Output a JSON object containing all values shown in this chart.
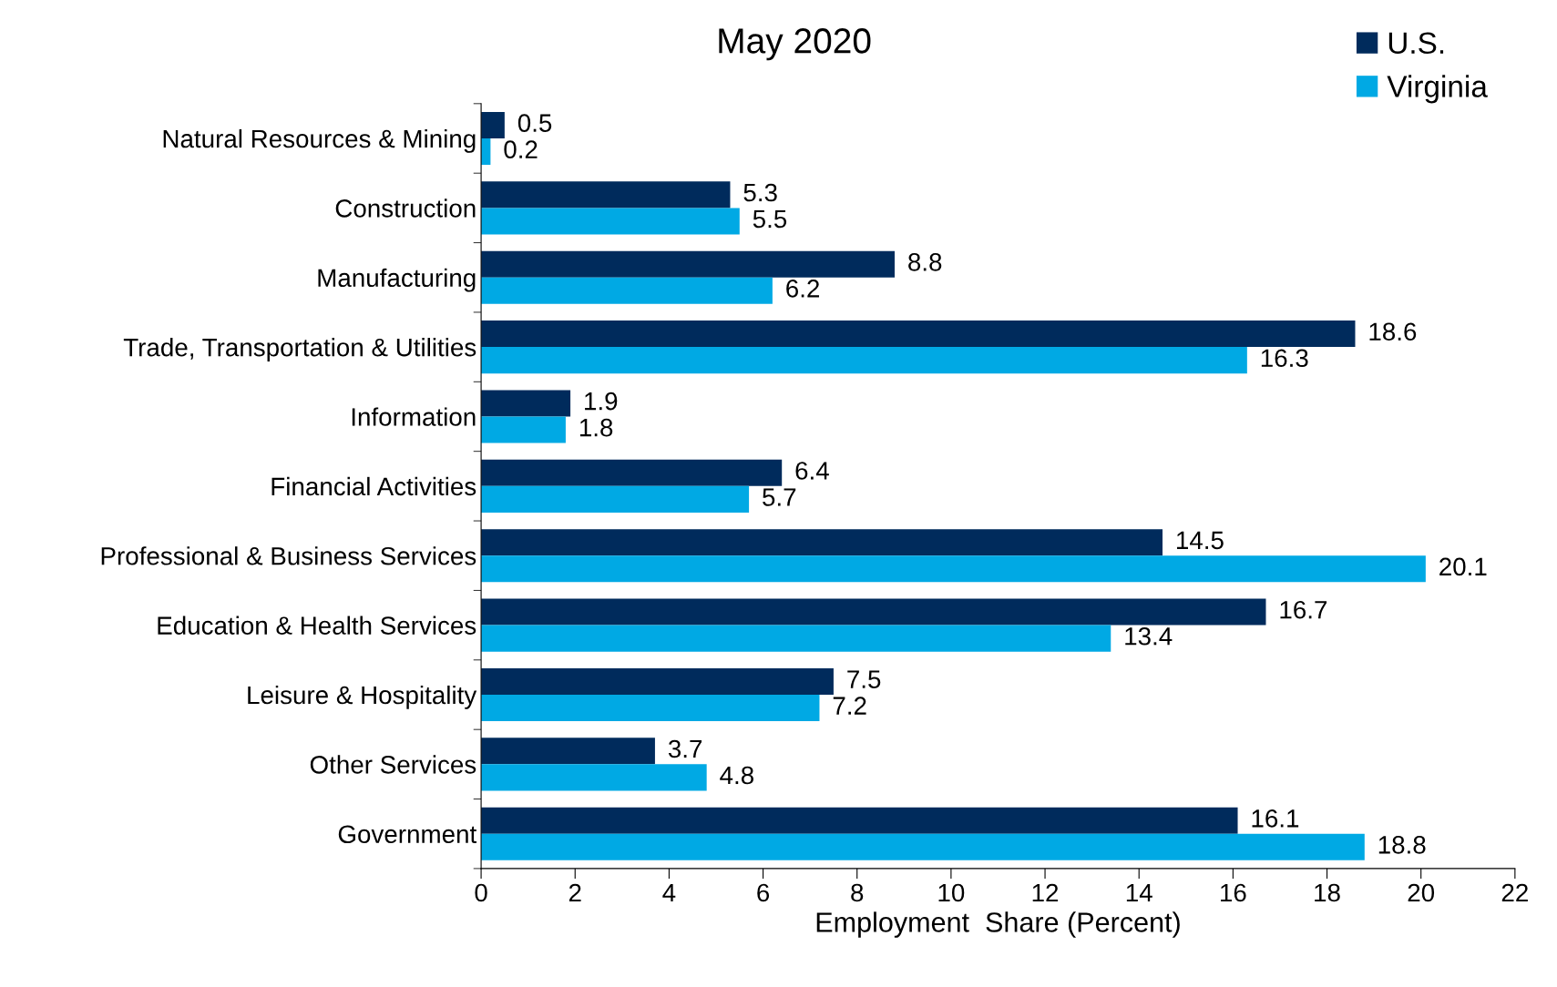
{
  "chart_data": {
    "type": "bar",
    "orientation": "horizontal",
    "title": "May 2020",
    "xlabel": "Employment  Share (Percent)",
    "categories": [
      "Natural Resources & Mining",
      "Construction",
      "Manufacturing",
      "Trade, Transportation & Utilities",
      "Information",
      "Financial Activities",
      "Professional & Business Services",
      "Education & Health Services",
      "Leisure & Hospitality",
      "Other Services",
      "Government"
    ],
    "series": [
      {
        "name": "U.S.",
        "color": "#002b5c",
        "values": [
          0.5,
          5.3,
          8.8,
          18.6,
          1.9,
          6.4,
          14.5,
          16.7,
          7.5,
          3.7,
          16.1
        ]
      },
      {
        "name": "Virginia",
        "color": "#00a9e4",
        "values": [
          0.2,
          5.5,
          6.2,
          16.3,
          1.8,
          5.7,
          20.1,
          13.4,
          7.2,
          4.8,
          18.8
        ]
      }
    ],
    "xlim": [
      0,
      22
    ],
    "xticks": [
      0,
      2,
      4,
      6,
      8,
      10,
      12,
      14,
      16,
      18,
      20,
      22
    ],
    "data_labels": true,
    "grid": false,
    "legend": "top right"
  }
}
